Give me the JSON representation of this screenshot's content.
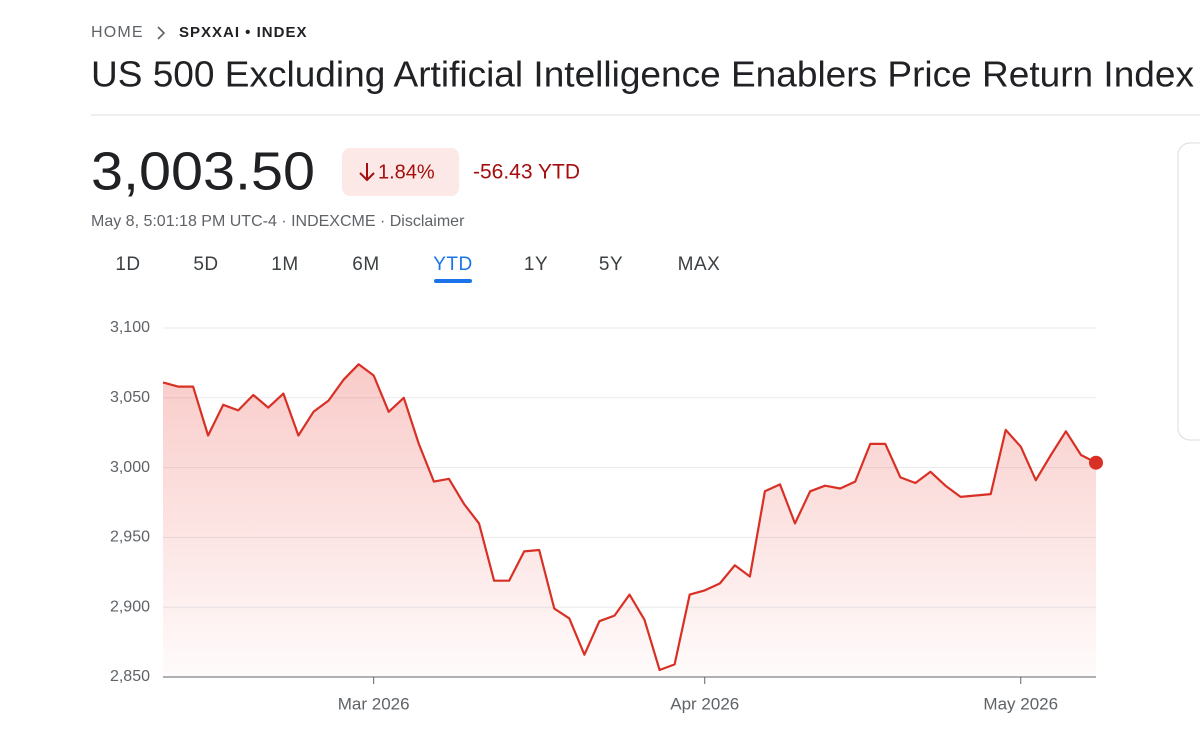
{
  "header": {
    "breadcrumb": [
      "HOME",
      "SPXXAI • INDEX"
    ],
    "title": "US 500 Excluding Artificial Intelligence Enablers Price Return Index"
  },
  "quote": {
    "price": "3,003.50",
    "change_pct": "1.84%",
    "change_ytd": "-56.43 YTD",
    "info": "May 8, 5:01:18 PM UTC-4 · INDEXCME · Disclaimer"
  },
  "tabs": [
    "1D",
    "5D",
    "1M",
    "6M",
    "YTD",
    "1Y",
    "5Y",
    "MAX"
  ],
  "selected_tab": "YTD",
  "chart_data": {
    "type": "line",
    "color": "#d93025",
    "grid": true,
    "values": [
      3061,
      3058,
      3058,
      3023,
      3045,
      3041,
      3052,
      3043,
      3053,
      3023,
      3040,
      3048,
      3063,
      3074,
      3066,
      3040,
      3050,
      3017,
      2990,
      2992,
      2974,
      2960,
      2919,
      2919,
      2940,
      2941,
      2899,
      2892,
      2866,
      2890,
      2894,
      2909,
      2891,
      2855,
      2859,
      2909,
      2912,
      2917,
      2930,
      2922,
      2983,
      2988,
      2960,
      2983,
      2987,
      2985,
      2990,
      3017,
      3017,
      2993,
      2989,
      2997,
      2987,
      2979,
      2980,
      2981,
      3027,
      3015,
      2991,
      3009,
      3026,
      3009,
      3003.5
    ],
    "xlim": [
      0,
      62
    ],
    "xticks": [
      {
        "value": 14,
        "label": "Mar 2026"
      },
      {
        "value": 36,
        "label": "Apr 2026"
      },
      {
        "value": 57,
        "label": "May 2026"
      }
    ],
    "ylim": [
      2850,
      3100
    ],
    "yticks": [
      {
        "value": 2850,
        "label": "2,850"
      },
      {
        "value": 2900,
        "label": "2,900"
      },
      {
        "value": 2950,
        "label": "2,950"
      },
      {
        "value": 3000,
        "label": "3,000"
      },
      {
        "value": 3050,
        "label": "3,050"
      },
      {
        "value": 3100,
        "label": "3,100"
      }
    ]
  }
}
